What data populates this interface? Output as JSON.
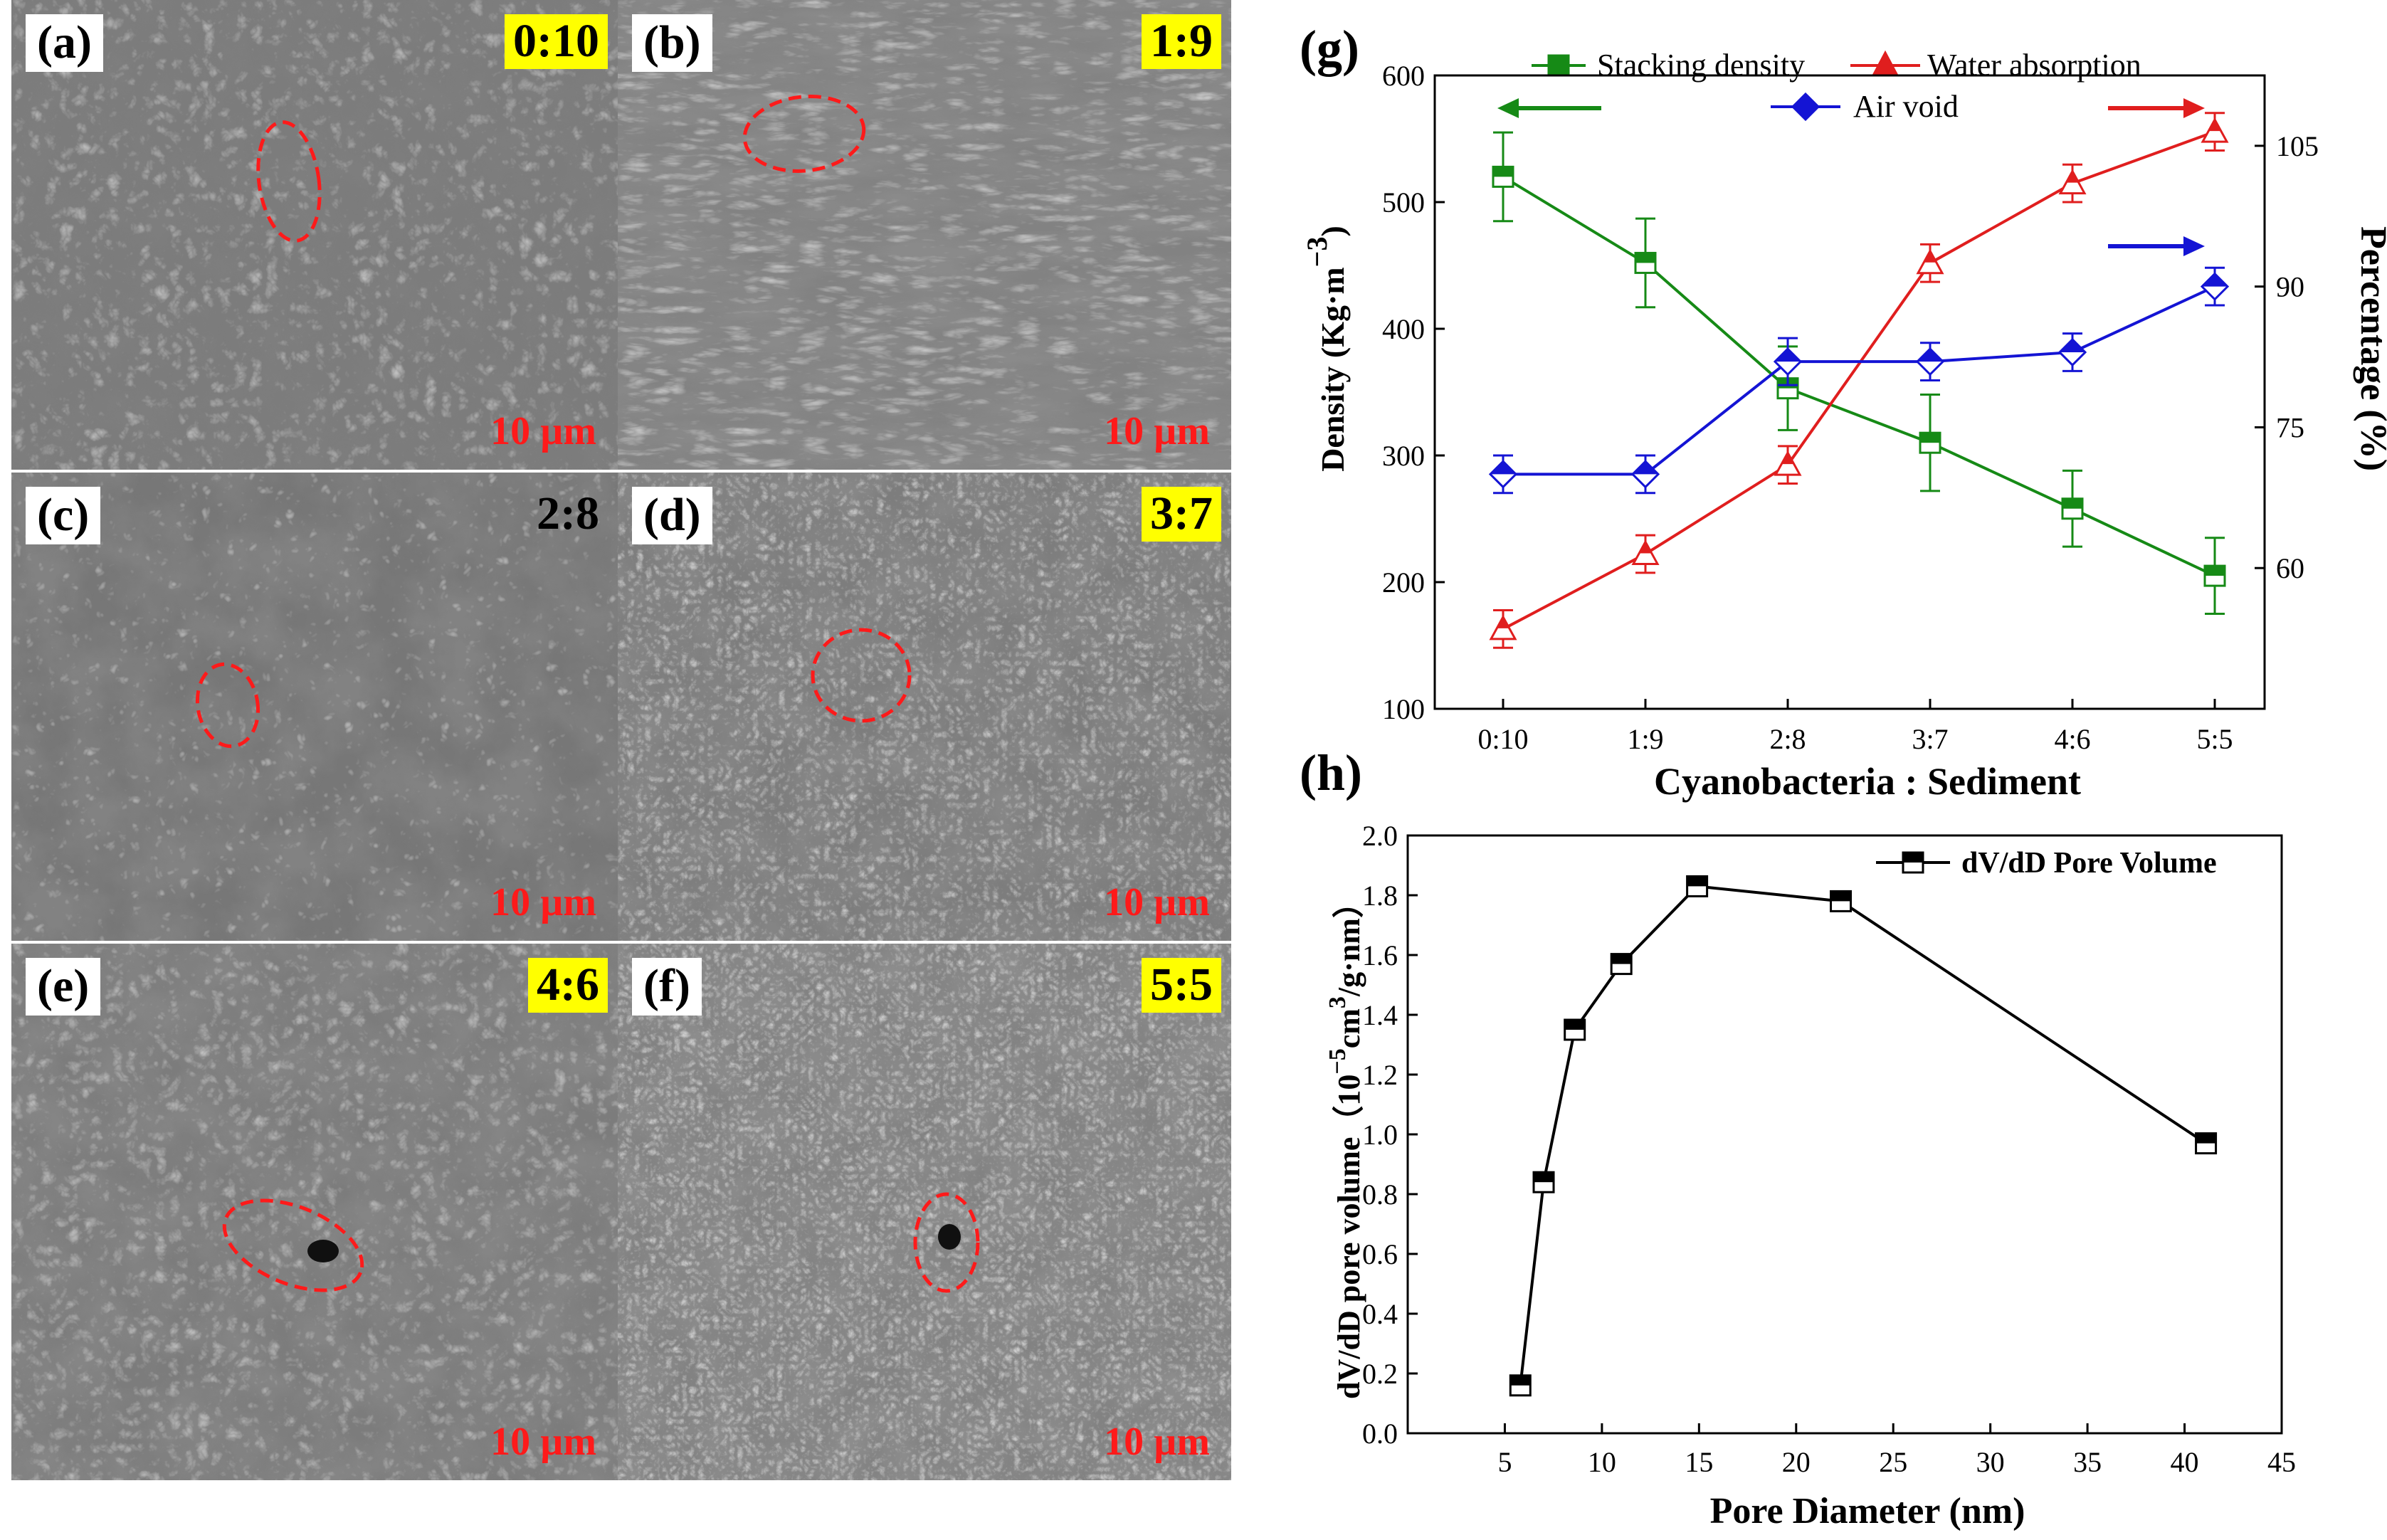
{
  "sem_panels": [
    {
      "label": "(a)",
      "ratio": "0:10",
      "scale": "10 µm"
    },
    {
      "label": "(b)",
      "ratio": "1:9",
      "scale": "10 µm"
    },
    {
      "label": "(c)",
      "ratio": "2:8",
      "scale": "10 µm"
    },
    {
      "label": "(d)",
      "ratio": "3:7",
      "scale": "10 µm"
    },
    {
      "label": "(e)",
      "ratio": "4:6",
      "scale": "10 µm"
    },
    {
      "label": "(f)",
      "ratio": "5:5",
      "scale": "10 µm"
    }
  ],
  "colors": {
    "green": "#168a16",
    "red": "#e01e1e",
    "blue": "#1414d4",
    "black": "#000000",
    "yellow": "#ffff00",
    "circle": "#ff1a1a"
  },
  "chart_data": [
    {
      "type": "line",
      "panel_label": "(g)",
      "categories": [
        "0:10",
        "1:9",
        "2:8",
        "3:7",
        "4:6",
        "5:5"
      ],
      "xlabel": "Cyanobacteria : Sediment",
      "ylabel": "Density (Kg·m",
      "ylabel_sup": "−3",
      "ylabel_close": ")",
      "ylim": [
        100,
        600
      ],
      "yticks": [
        100,
        200,
        300,
        400,
        500,
        600
      ],
      "y2label": "Percentage (%)",
      "y2lim": [
        45,
        112.5
      ],
      "y2ticks": [
        60,
        75,
        90,
        105
      ],
      "legend": "top",
      "series": [
        {
          "name": "Stacking density",
          "axis": "left",
          "color": "#168a16",
          "marker": "square",
          "values": [
            520,
            452,
            353,
            310,
            258,
            205
          ],
          "errors": [
            35,
            35,
            33,
            38,
            30,
            30
          ]
        },
        {
          "name": "Water absorption",
          "axis": "right",
          "color": "#e01e1e",
          "marker": "triangle",
          "values": [
            53.5,
            61.5,
            71.0,
            92.5,
            101.0,
            106.5
          ],
          "errors": [
            2,
            2,
            2,
            2,
            2,
            2
          ]
        },
        {
          "name": "Air void",
          "axis": "right",
          "color": "#1414d4",
          "marker": "diamond",
          "values": [
            70.0,
            70.0,
            82.0,
            82.0,
            83.0,
            90.0
          ],
          "errors": [
            2,
            2,
            2.5,
            2,
            2,
            2
          ]
        }
      ]
    },
    {
      "type": "line",
      "panel_label": "(h)",
      "x": [
        5.8,
        7.0,
        8.6,
        11.0,
        14.9,
        22.3,
        41.1
      ],
      "values": [
        0.16,
        0.84,
        1.35,
        1.57,
        1.83,
        1.78,
        0.97
      ],
      "series_name": "dV/dD Pore Volume",
      "xlabel": "Pore Diameter (nm)",
      "ylabel_pre": "dV/dD pore volume（10",
      "ylabel_sup1": "−5",
      "ylabel_mid": "cm",
      "ylabel_sup2": "3",
      "ylabel_post": "/g·nm）",
      "xlim": [
        0,
        45
      ],
      "xticks": [
        5,
        10,
        15,
        20,
        25,
        30,
        35,
        40,
        45
      ],
      "ylim": [
        0,
        2
      ],
      "yticks": [
        0.0,
        0.2,
        0.4,
        0.6,
        0.8,
        1.0,
        1.2,
        1.4,
        1.6,
        1.8,
        2.0
      ],
      "legend": "top-right",
      "color": "#000000"
    }
  ]
}
